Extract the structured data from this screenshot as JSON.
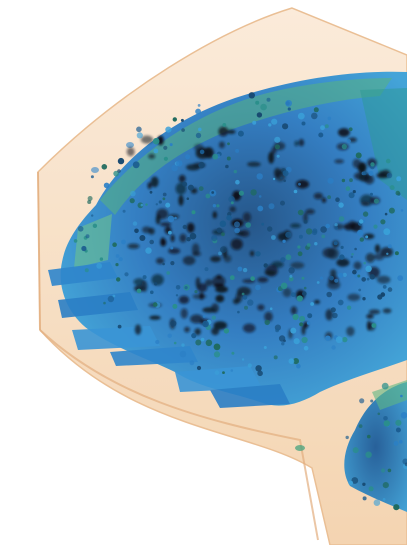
{
  "image": {
    "subject": "volumetric-3d-render",
    "colors": {
      "background": "#ffffff",
      "volume_fill": "#f6d9b6",
      "volume_edge": "#e8b98a",
      "blue_primary": "#1f6fb3",
      "blue_light": "#3d9ad6",
      "teal": "#2a8f8a",
      "green": "#63b37a",
      "dark_blob": "#0e1620"
    }
  }
}
